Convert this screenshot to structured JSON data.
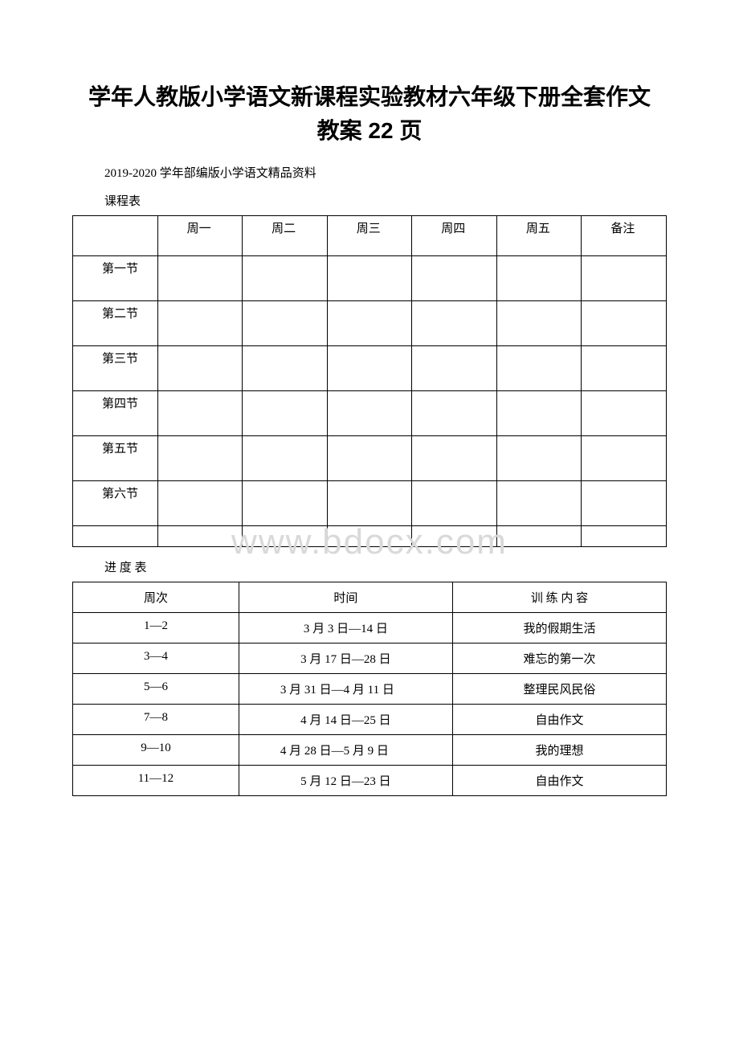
{
  "title_line1": "学年人教版小学语文新课程实验教材六年级下册全套作文",
  "title_line2": "教案 22 页",
  "subtitle": "2019-2020 学年部编版小学语文精品资料",
  "timetable_label": "课程表",
  "schedule_label": "进 度 表",
  "watermark": "www.bdocx.com",
  "timetable": {
    "headers": [
      "",
      "周一",
      "周二",
      "周三",
      "周四",
      "周五",
      "备注"
    ],
    "rows": [
      "第一节",
      "第二节",
      "第三节",
      "第四节",
      "第五节",
      "第六节"
    ]
  },
  "schedule": {
    "headers": [
      "周次",
      "时间",
      "训 练 内 容"
    ],
    "rows": [
      {
        "week": "1—2",
        "time": "3 月 3 日—14 日",
        "content": "我的假期生活",
        "wrap": false
      },
      {
        "week": "3—4",
        "time": "3 月 17 日—28 日",
        "content": "难忘的第一次",
        "wrap": false
      },
      {
        "week": "5—6",
        "time": "3 月 31 日—4 月 11 日",
        "content": "整理民风民俗",
        "wrap": true
      },
      {
        "week": "7—8",
        "time": "4 月 14 日—25 日",
        "content": "自由作文",
        "wrap": false
      },
      {
        "week": "9—10",
        "time": "4 月 28 日—5 月 9 日",
        "content": "我的理想",
        "wrap": true
      },
      {
        "week": "11—12",
        "time": "5 月 12 日—23 日",
        "content": "自由作文",
        "wrap": false
      }
    ]
  },
  "colors": {
    "text": "#000000",
    "background": "#ffffff",
    "border": "#000000",
    "watermark": "#d9d9d9"
  }
}
